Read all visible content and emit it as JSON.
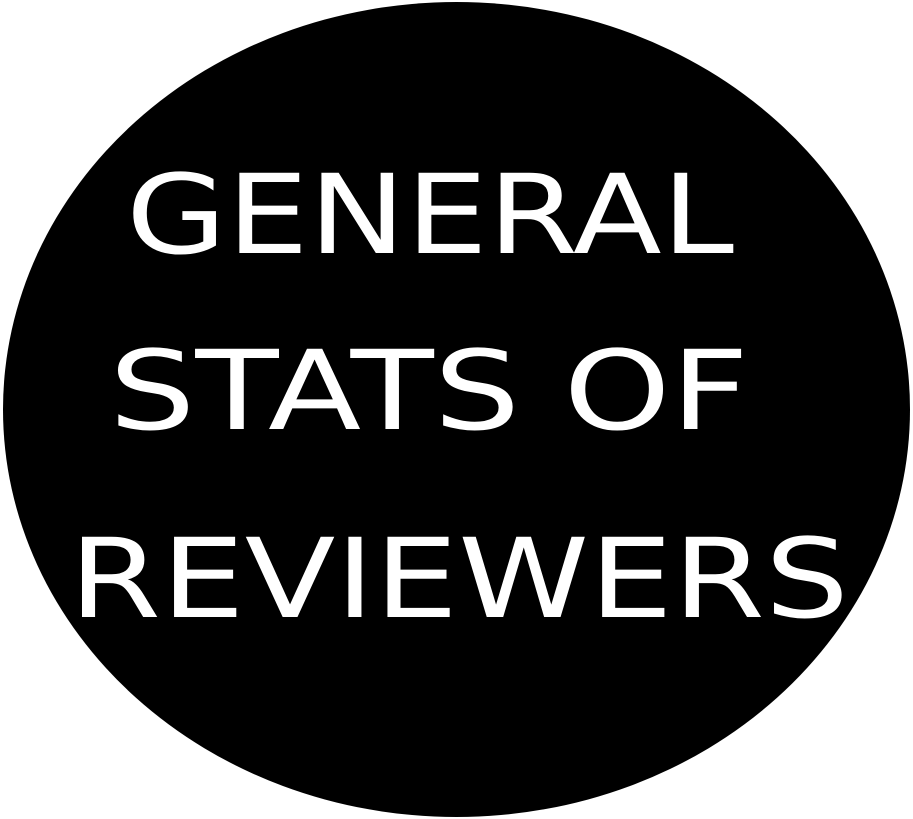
{
  "badge": {
    "background_color": "#000000",
    "text_color": "#ffffff"
  },
  "title": {
    "line_1": "GENERAL",
    "line_2": "STATS OF",
    "line_3": "REVIEWERS"
  }
}
